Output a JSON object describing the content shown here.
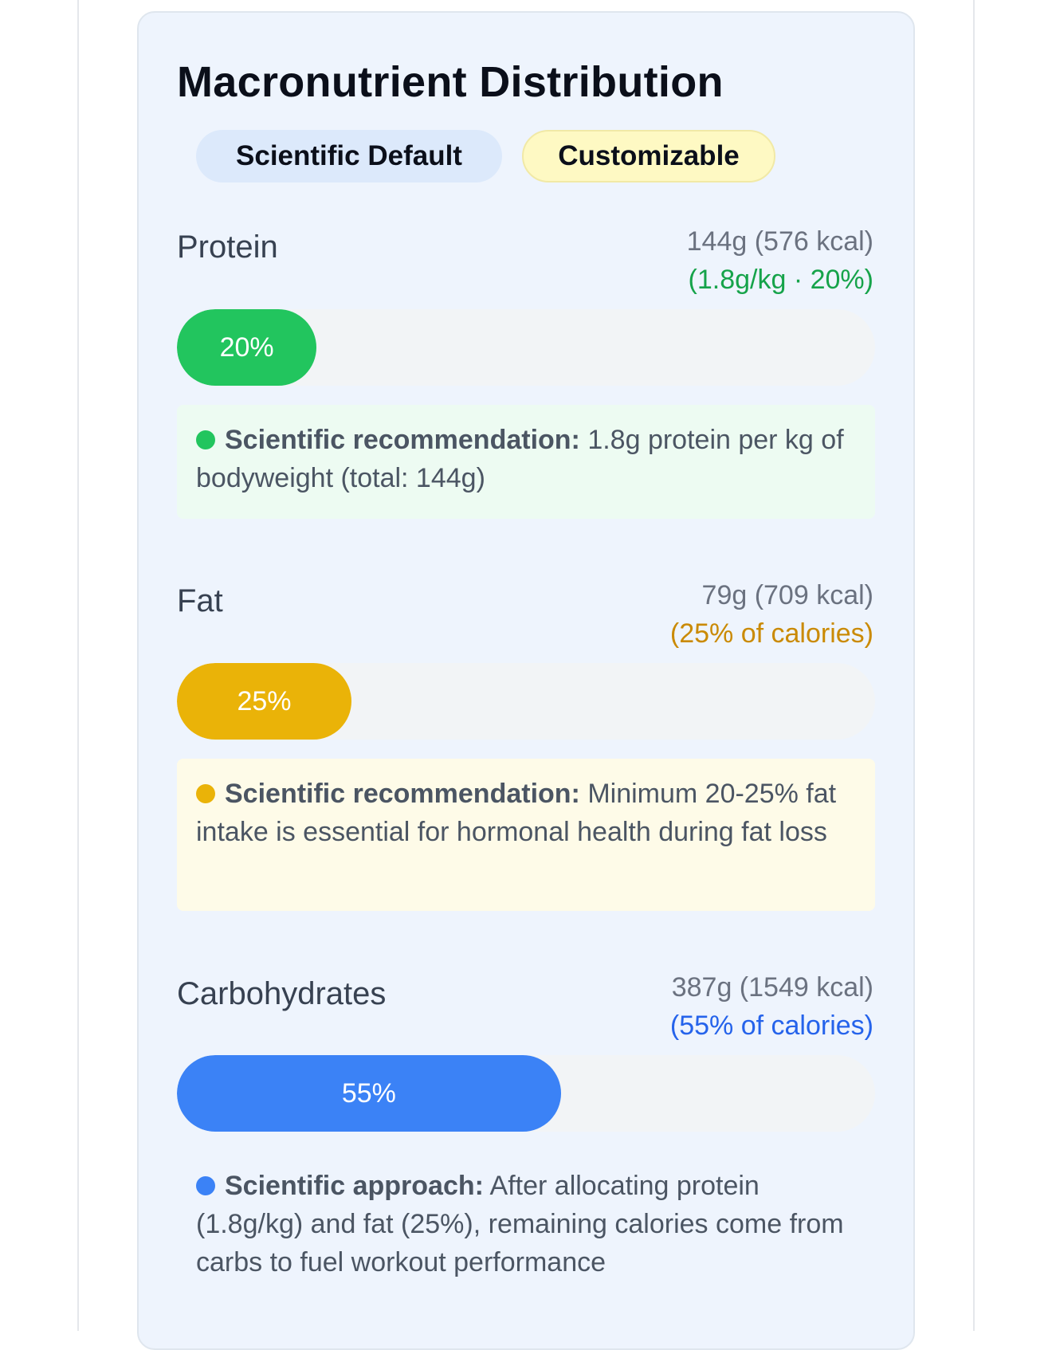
{
  "card": {
    "title": "Macronutrient Distribution",
    "badges": {
      "default": "Scientific Default",
      "custom": "Customizable"
    }
  },
  "macros": {
    "protein": {
      "label": "Protein",
      "amount": "144g (576 kcal)",
      "sub": "(1.8g/kg · 20%)",
      "percent": 20,
      "percent_label": "20%",
      "color": "#22c55e",
      "sub_color": "#16a34a",
      "note_bg": "#edfbf2",
      "note_lead": "Scientific recommendation:",
      "note_text": " 1.8g protein per kg of bodyweight (total: 144g)"
    },
    "fat": {
      "label": "Fat",
      "amount": "79g (709 kcal)",
      "sub": "(25% of calories)",
      "percent": 25,
      "percent_label": "25%",
      "color": "#eab308",
      "sub_color": "#ca8a04",
      "note_bg": "#fefbe8",
      "note_lead": "Scientific recommendation:",
      "note_text": " Minimum 20-25% fat intake is essential for hormonal health during fat loss"
    },
    "carbs": {
      "label": "Carbohydrates",
      "amount": "387g (1549 kcal)",
      "sub": "(55% of calories)",
      "percent": 55,
      "percent_label": "55%",
      "color": "#3b82f6",
      "sub_color": "#2563eb",
      "note_bg": "#eef4fd",
      "note_lead": "Scientific approach:",
      "note_text": " After allocating protein (1.8g/kg) and fat (25%), remaining calories come from carbs to fuel workout performance"
    }
  }
}
